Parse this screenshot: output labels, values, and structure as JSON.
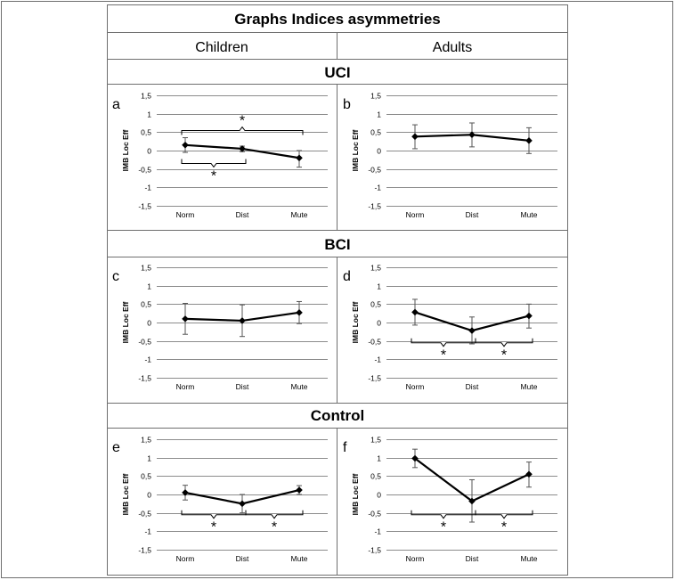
{
  "figure": {
    "title": "Graphs Indices asymmetries",
    "columns": [
      "Children",
      "Adults"
    ],
    "sections": [
      "UCI",
      "BCI",
      "Control"
    ]
  },
  "chart_data": [
    {
      "panel": "a",
      "type": "line",
      "group": "Children",
      "section": "UCI",
      "categories": [
        "Norm",
        "Dist",
        "Mute"
      ],
      "values": [
        0.15,
        0.05,
        -0.2
      ],
      "error": [
        [
          -0.05,
          0.35
        ],
        [
          -0.03,
          0.12
        ],
        [
          -0.45,
          0.0
        ]
      ],
      "ylabel": "IMB Loc Eff",
      "ylim": [
        -1.5,
        1.5
      ],
      "yticks": [
        "1,5",
        "1",
        "0,5",
        "0",
        "-0,5",
        "-1",
        "-1,5"
      ],
      "grid": true,
      "significance": [
        {
          "from": "Norm",
          "to": "Dist",
          "label": "*",
          "position": "below"
        },
        {
          "from": "Norm",
          "to": "Mute",
          "label": "*",
          "position": "above"
        }
      ]
    },
    {
      "panel": "b",
      "type": "line",
      "group": "Adults",
      "section": "UCI",
      "categories": [
        "Norm",
        "Dist",
        "Mute"
      ],
      "values": [
        0.38,
        0.43,
        0.27
      ],
      "error": [
        [
          0.05,
          0.7
        ],
        [
          0.1,
          0.75
        ],
        [
          -0.08,
          0.62
        ]
      ],
      "ylabel": "IMB Loc Eff",
      "ylim": [
        -1.5,
        1.5
      ],
      "yticks": [
        "1,5",
        "1",
        "0,5",
        "0",
        "-0,5",
        "-1",
        "-1,5"
      ],
      "grid": true,
      "significance": []
    },
    {
      "panel": "c",
      "type": "line",
      "group": "Children",
      "section": "BCI",
      "categories": [
        "Norm",
        "Dist",
        "Mute"
      ],
      "values": [
        0.1,
        0.05,
        0.27
      ],
      "error": [
        [
          -0.32,
          0.52
        ],
        [
          -0.38,
          0.48
        ],
        [
          -0.03,
          0.57
        ]
      ],
      "ylabel": "IMB Loc Eff",
      "ylim": [
        -1.5,
        1.5
      ],
      "yticks": [
        "1,5",
        "1",
        "0,5",
        "0",
        "-0,5",
        "-1",
        "-1,5"
      ],
      "grid": true,
      "significance": []
    },
    {
      "panel": "d",
      "type": "line",
      "group": "Adults",
      "section": "BCI",
      "categories": [
        "Norm",
        "Dist",
        "Mute"
      ],
      "values": [
        0.28,
        -0.22,
        0.18
      ],
      "error": [
        [
          -0.07,
          0.63
        ],
        [
          -0.58,
          0.15
        ],
        [
          -0.15,
          0.5
        ]
      ],
      "ylabel": "IMB Loc Eff",
      "ylim": [
        -1.5,
        1.5
      ],
      "yticks": [
        "1,5",
        "1",
        "0,5",
        "0",
        "-0,5",
        "-1",
        "-1,5"
      ],
      "grid": true,
      "significance": [
        {
          "from": "Norm",
          "to": "Dist",
          "label": "*",
          "position": "below"
        },
        {
          "from": "Dist",
          "to": "Mute",
          "label": "*",
          "position": "below"
        }
      ]
    },
    {
      "panel": "e",
      "type": "line",
      "group": "Children",
      "section": "Control",
      "categories": [
        "Norm",
        "Dist",
        "Mute"
      ],
      "values": [
        0.05,
        -0.25,
        0.12
      ],
      "error": [
        [
          -0.15,
          0.25
        ],
        [
          -0.5,
          0.0
        ],
        [
          0.0,
          0.24
        ]
      ],
      "ylabel": "IMB Loc Eff",
      "ylim": [
        -1.5,
        1.5
      ],
      "yticks": [
        "1,5",
        "1",
        "0,5",
        "0",
        "-0,5",
        "-1",
        "-1,5"
      ],
      "grid": true,
      "significance": [
        {
          "from": "Norm",
          "to": "Dist",
          "label": "*",
          "position": "below"
        },
        {
          "from": "Dist",
          "to": "Mute",
          "label": "*",
          "position": "below"
        }
      ]
    },
    {
      "panel": "f",
      "type": "line",
      "group": "Adults",
      "section": "Control",
      "categories": [
        "Norm",
        "Dist",
        "Mute"
      ],
      "values": [
        0.98,
        -0.18,
        0.55
      ],
      "error": [
        [
          0.73,
          1.23
        ],
        [
          -0.75,
          0.4
        ],
        [
          0.2,
          0.88
        ]
      ],
      "ylabel": "IMB Loc Eff",
      "ylim": [
        -1.5,
        1.5
      ],
      "yticks": [
        "1,5",
        "1",
        "0,5",
        "0",
        "-0,5",
        "-1",
        "-1,5"
      ],
      "grid": true,
      "significance": [
        {
          "from": "Norm",
          "to": "Dist",
          "label": "*",
          "position": "below"
        },
        {
          "from": "Dist",
          "to": "Mute",
          "label": "*",
          "position": "below"
        }
      ]
    }
  ]
}
